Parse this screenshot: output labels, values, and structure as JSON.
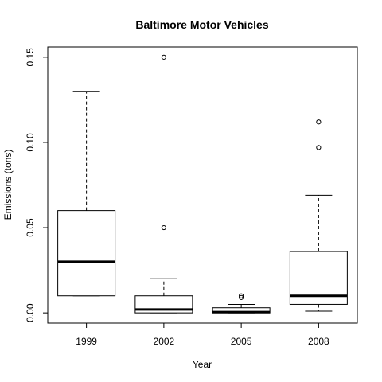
{
  "chart_data": {
    "type": "boxplot",
    "title": "Baltimore Motor Vehicles",
    "xlabel": "Year",
    "ylabel": "Emissions (tons)",
    "categories": [
      "1999",
      "2002",
      "2005",
      "2008"
    ],
    "y_ticks": [
      0.0,
      0.05,
      0.1,
      0.15
    ],
    "y_tick_labels": [
      "0.00",
      "0.05",
      "0.10",
      "0.15"
    ],
    "ylim": [
      -0.006,
      0.156
    ],
    "grid": false,
    "boxes": [
      {
        "category": "1999",
        "whisker_low": 0.01,
        "q1": 0.01,
        "median": 0.03,
        "q3": 0.06,
        "whisker_high": 0.13,
        "outliers": []
      },
      {
        "category": "2002",
        "whisker_low": 0.0,
        "q1": 0.0,
        "median": 0.002,
        "q3": 0.01,
        "whisker_high": 0.02,
        "outliers": [
          0.05,
          0.15
        ]
      },
      {
        "category": "2005",
        "whisker_low": 0.0,
        "q1": 0.0,
        "median": 0.0005,
        "q3": 0.003,
        "whisker_high": 0.005,
        "outliers": [
          0.009,
          0.01
        ]
      },
      {
        "category": "2008",
        "whisker_low": 0.001,
        "q1": 0.005,
        "median": 0.01,
        "q3": 0.036,
        "whisker_high": 0.069,
        "outliers": [
          0.097,
          0.112
        ]
      }
    ]
  }
}
